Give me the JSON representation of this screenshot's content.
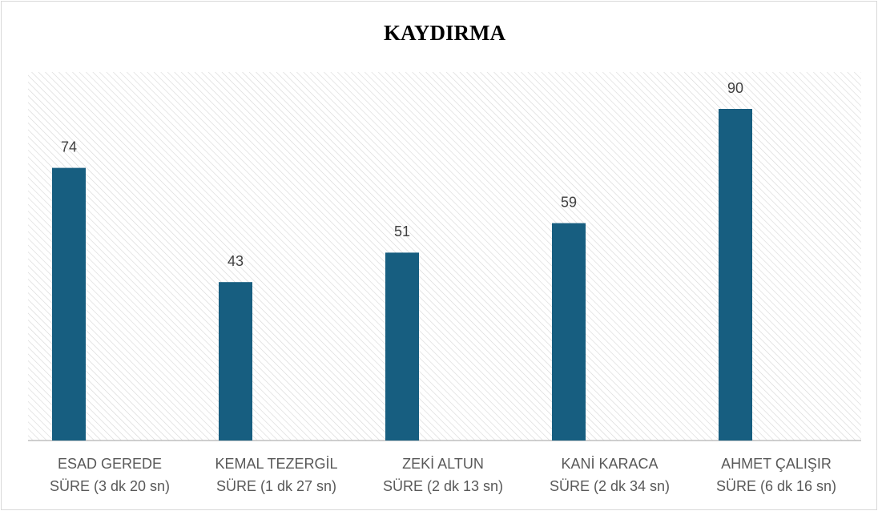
{
  "chart_data": {
    "type": "bar",
    "title": "KAYDIRMA",
    "categories": [
      [
        "ESAD GEREDE",
        "SÜRE (3 dk 20 sn)"
      ],
      [
        "KEMAL TEZERGİL",
        "SÜRE (1 dk 27 sn)"
      ],
      [
        "ZEKİ ALTUN",
        "SÜRE (2 dk 13 sn)"
      ],
      [
        "KANİ KARACA",
        "SÜRE (2 dk 34 sn)"
      ],
      [
        "AHMET ÇALIŞIR",
        "SÜRE (6 dk 16 sn)"
      ]
    ],
    "values": [
      74,
      43,
      51,
      59,
      90
    ],
    "color": "#175e80",
    "ylim": [
      0,
      100
    ],
    "grid": false
  }
}
